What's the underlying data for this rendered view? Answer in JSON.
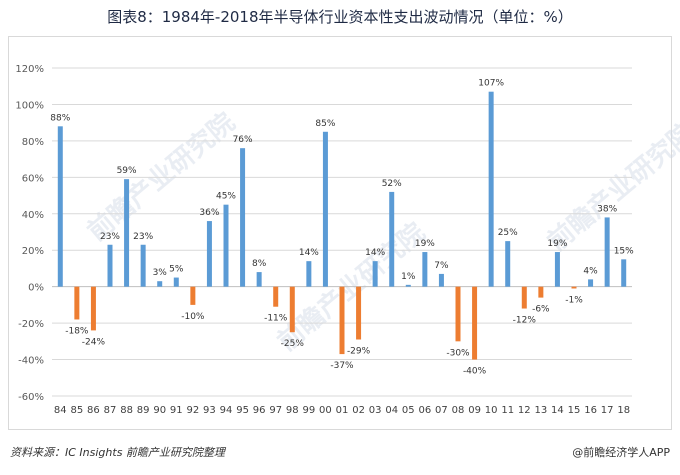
{
  "title": "图表8：1984年-2018年半导体行业资本性支出波动情况（单位：%）",
  "source": "资料来源：IC Insights 前瞻产业研究院整理",
  "credit": "@前瞻经济学人APP",
  "watermark": "前瞻产业研究院",
  "colors": {
    "positive": "#5b9bd5",
    "negative": "#ed7d31",
    "grid": "#d9d9d9",
    "axis": "#bfbfbf"
  },
  "chart_data": {
    "type": "bar",
    "categories": [
      "84",
      "85",
      "86",
      "87",
      "88",
      "89",
      "90",
      "91",
      "92",
      "93",
      "94",
      "95",
      "96",
      "97",
      "98",
      "99",
      "00",
      "01",
      "02",
      "03",
      "04",
      "05",
      "06",
      "07",
      "08",
      "09",
      "10",
      "11",
      "12",
      "13",
      "14",
      "15",
      "16",
      "17",
      "18"
    ],
    "values": [
      88,
      -18,
      -24,
      23,
      59,
      23,
      3,
      5,
      -10,
      36,
      45,
      76,
      8,
      -11,
      -25,
      14,
      85,
      -37,
      -29,
      14,
      52,
      1,
      19,
      7,
      -30,
      -40,
      107,
      25,
      -12,
      -6,
      19,
      -1,
      4,
      38,
      15
    ],
    "data_labels": [
      "88%",
      "-18%",
      "-24%",
      "23%",
      "59%",
      "23%",
      "3%",
      "5%",
      "-10%",
      "36%",
      "45%",
      "76%",
      "8%",
      "-11%",
      "-25%",
      "14%",
      "85%",
      "-37%",
      "-29%",
      "14%",
      "52%",
      "1%",
      "19%",
      "7%",
      "-30%",
      "-40%",
      "107%",
      "25%",
      "-12%",
      "-6%",
      "19%",
      "-1%",
      "4%",
      "38%",
      "15%"
    ],
    "yticks": [
      "120%",
      "100%",
      "80%",
      "60%",
      "40%",
      "20%",
      "0%",
      "-20%",
      "-40%",
      "-60%"
    ],
    "ylim": [
      -60,
      120
    ],
    "grid": true,
    "legend": "none"
  }
}
